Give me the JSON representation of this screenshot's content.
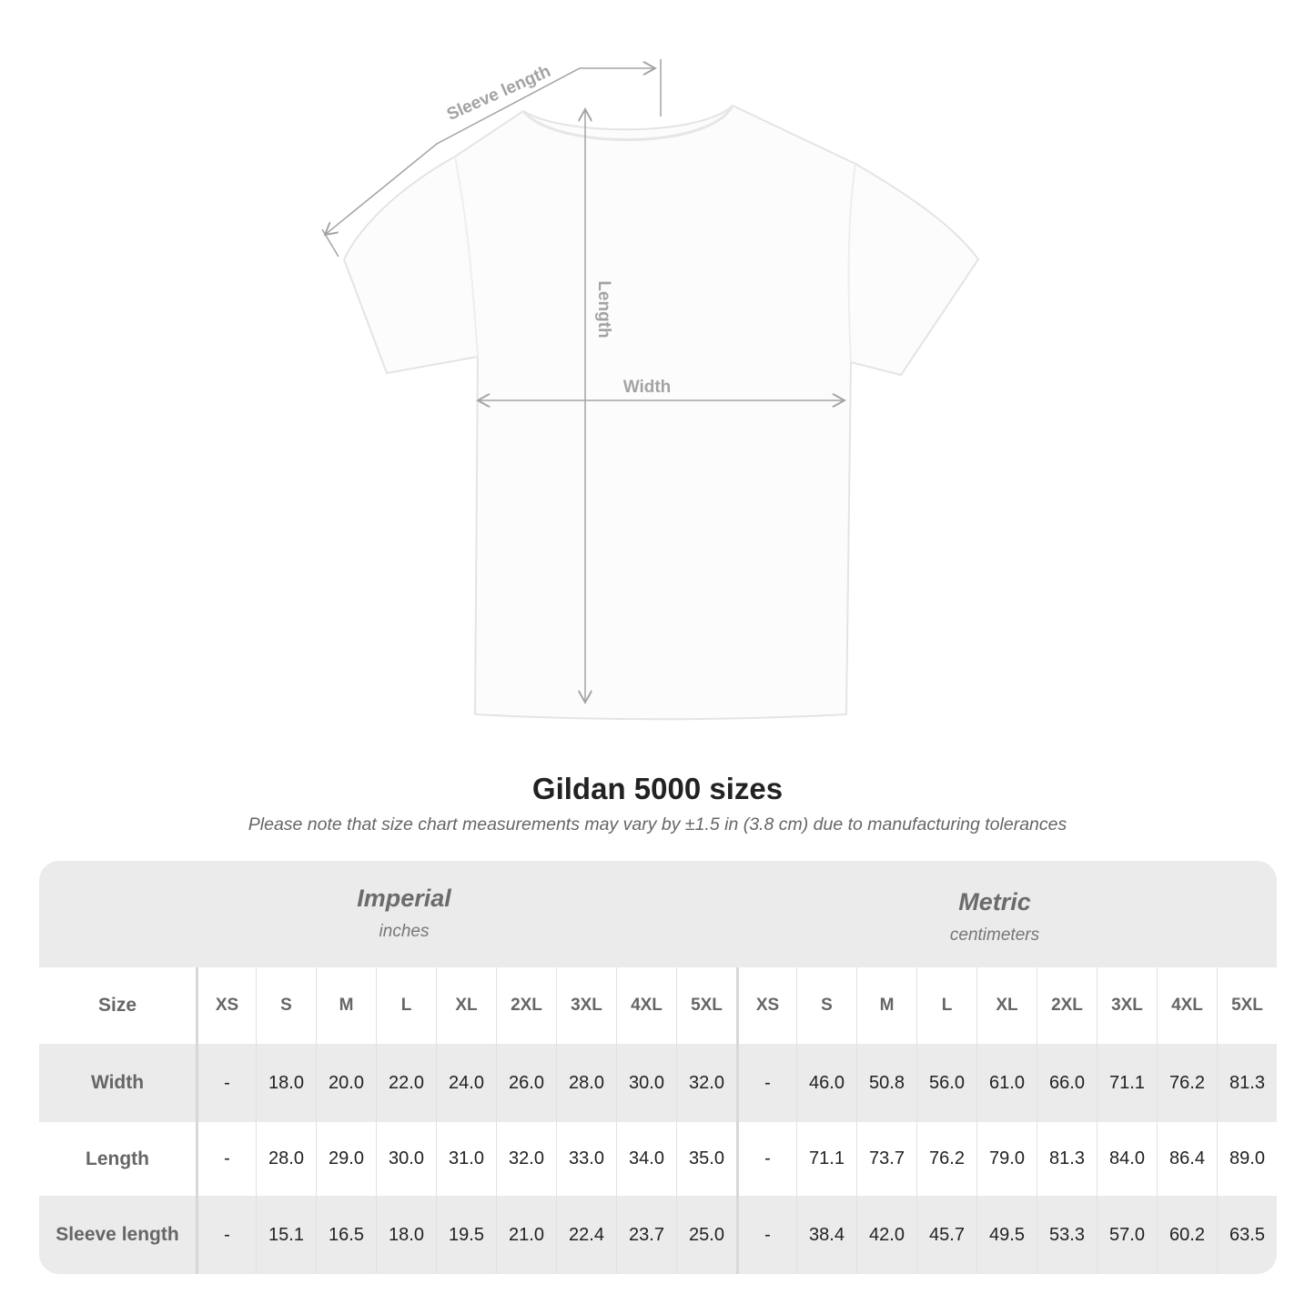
{
  "diagram": {
    "labels": {
      "sleeve_length": "Sleeve length",
      "length": "Length",
      "width": "Width"
    },
    "line_color": "#a3a3a3"
  },
  "title": "Gildan 5000 sizes",
  "subtitle": "Please note that size chart measurements may vary by ±1.5 in (3.8 cm) due to manufacturing tolerances",
  "table": {
    "imperial": {
      "heading": "Imperial",
      "unit": "inches"
    },
    "metric": {
      "heading": "Metric",
      "unit": "centimeters"
    },
    "size_label": "Size",
    "sizes": [
      "XS",
      "S",
      "M",
      "L",
      "XL",
      "2XL",
      "3XL",
      "4XL",
      "5XL"
    ],
    "rows": [
      {
        "label": "Width",
        "imperial": [
          "-",
          "18.0",
          "20.0",
          "22.0",
          "24.0",
          "26.0",
          "28.0",
          "30.0",
          "32.0"
        ],
        "metric": [
          "-",
          "46.0",
          "50.8",
          "56.0",
          "61.0",
          "66.0",
          "71.1",
          "76.2",
          "81.3"
        ]
      },
      {
        "label": "Length",
        "imperial": [
          "-",
          "28.0",
          "29.0",
          "30.0",
          "31.0",
          "32.0",
          "33.0",
          "34.0",
          "35.0"
        ],
        "metric": [
          "-",
          "71.1",
          "73.7",
          "76.2",
          "79.0",
          "81.3",
          "84.0",
          "86.4",
          "89.0"
        ]
      },
      {
        "label": "Sleeve length",
        "imperial": [
          "-",
          "15.1",
          "16.5",
          "18.0",
          "19.5",
          "21.0",
          "22.4",
          "23.7",
          "25.0"
        ],
        "metric": [
          "-",
          "38.4",
          "42.0",
          "45.7",
          "49.5",
          "53.3",
          "57.0",
          "60.2",
          "63.5"
        ]
      }
    ],
    "band_color": "#ebebeb"
  }
}
